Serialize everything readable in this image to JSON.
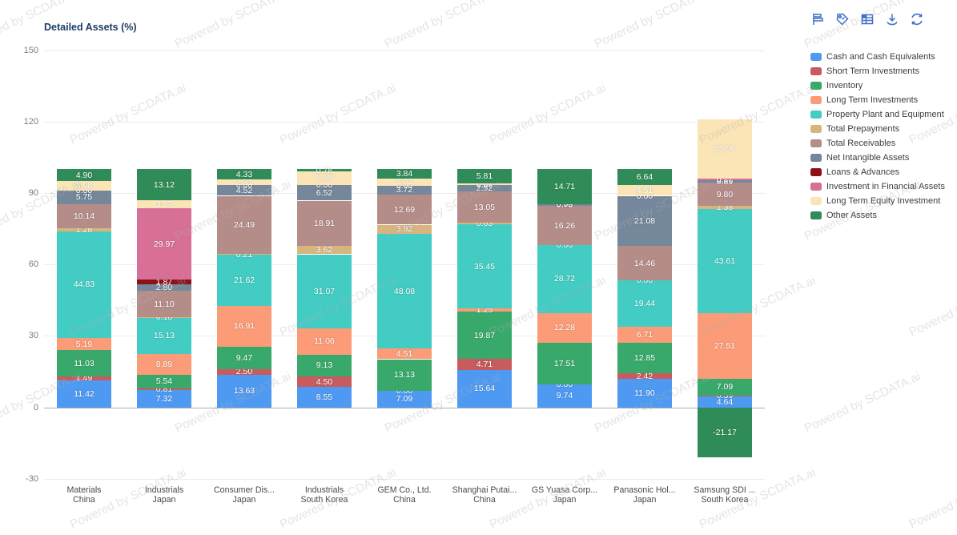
{
  "header": {
    "title": "Detailed Assets (%)"
  },
  "toolbar": {
    "accent_color": "#3B6FC9",
    "icons": [
      "flag-chart",
      "tag",
      "table",
      "download",
      "refresh"
    ]
  },
  "watermark": {
    "text": "Powered by SCDATA.ai"
  },
  "chart_data": {
    "type": "bar",
    "stacked": true,
    "title": "Detailed Assets (%)",
    "xlabel": "",
    "ylabel": "",
    "ylim": [
      -30,
      150
    ],
    "y_ticks": [
      150,
      120,
      90,
      60,
      30,
      0,
      -30
    ],
    "grid": true,
    "legend_position": "right",
    "categories": [
      {
        "label": "Materials",
        "sub": "China"
      },
      {
        "label": "Industrials",
        "sub": "Japan"
      },
      {
        "label": "Consumer Dis...",
        "sub": "Japan"
      },
      {
        "label": "Industrials",
        "sub": "South Korea"
      },
      {
        "label": "GEM Co., Ltd.",
        "sub": "China"
      },
      {
        "label": "Shanghai Putai...",
        "sub": "China"
      },
      {
        "label": "GS Yuasa Corp...",
        "sub": "Japan"
      },
      {
        "label": "Panasonic Hol...",
        "sub": "Japan"
      },
      {
        "label": "Samsung SDI ...",
        "sub": "South Korea"
      }
    ],
    "series": [
      {
        "name": "Cash and Cash Equivalents",
        "color": "#4E9AF2",
        "values": [
          11.42,
          7.32,
          13.63,
          8.55,
          7.09,
          15.64,
          9.74,
          11.9,
          4.64
        ]
      },
      {
        "name": "Short Term Investments",
        "color": "#C75B5E",
        "values": [
          1.49,
          0.81,
          2.5,
          4.5,
          0.0,
          4.71,
          0.0,
          2.42,
          0.39
        ]
      },
      {
        "name": "Inventory",
        "color": "#38A96B",
        "values": [
          11.03,
          5.54,
          9.47,
          9.13,
          13.13,
          19.87,
          17.51,
          12.85,
          7.09
        ]
      },
      {
        "name": "Long Term Investments",
        "color": "#FB9B77",
        "values": [
          5.19,
          8.89,
          16.91,
          11.06,
          4.51,
          1.25,
          12.28,
          6.71,
          27.51
        ]
      },
      {
        "name": "Property Plant and Equipment",
        "color": "#43CCC4",
        "values": [
          44.83,
          15.13,
          21.62,
          31.07,
          48.08,
          35.45,
          28.72,
          19.44,
          43.61
        ]
      },
      {
        "name": "Total Prepayments",
        "color": "#D9B57E",
        "values": [
          1.28,
          0.18,
          0.21,
          3.62,
          3.92,
          0.63,
          0.0,
          0.0,
          1.38
        ]
      },
      {
        "name": "Total Receivables",
        "color": "#B48D89",
        "values": [
          10.14,
          11.1,
          24.49,
          18.91,
          12.69,
          13.05,
          16.26,
          14.46,
          9.8
        ]
      },
      {
        "name": "Net Intangible Assets",
        "color": "#75879B",
        "values": [
          5.75,
          2.8,
          4.52,
          6.52,
          3.72,
          2.92,
          0.78,
          21.08,
          0.89
        ]
      },
      {
        "name": "Loans & Advances",
        "color": "#8D1218",
        "values": [
          0.0,
          1.87,
          0.0,
          0.0,
          0.0,
          0.0,
          0.0,
          0.0,
          0.0
        ]
      },
      {
        "name": "Investment in Financial Assets",
        "color": "#D76F97",
        "values": [
          0.0,
          29.97,
          0.0,
          0.0,
          0.0,
          0.0,
          0.0,
          0.0,
          0.77
        ]
      },
      {
        "name": "Long Term Equity Investment",
        "color": "#FBE5B6",
        "values": [
          3.98,
          3.27,
          2.31,
          5.85,
          3.02,
          0.67,
          0.0,
          4.51,
          25.09
        ]
      },
      {
        "name": "Other Assets",
        "color": "#2F8B57",
        "values": [
          4.9,
          13.12,
          4.33,
          0.78,
          3.84,
          5.81,
          14.71,
          6.64,
          -21.17
        ]
      }
    ]
  }
}
